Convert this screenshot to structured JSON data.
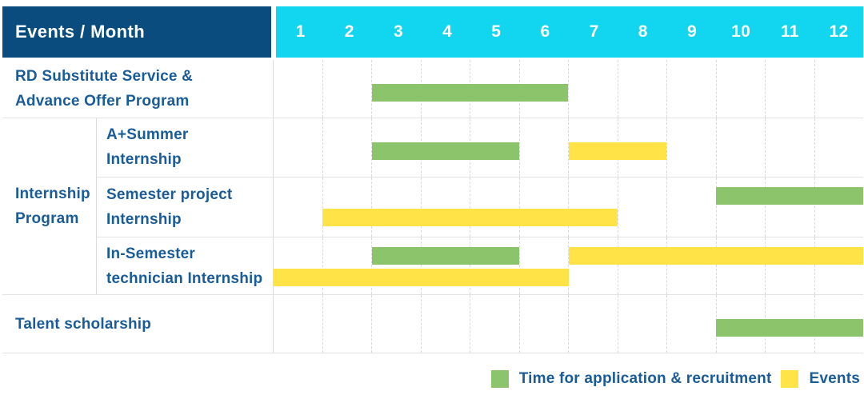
{
  "header": {
    "label": "Events / Month",
    "months": [
      "1",
      "2",
      "3",
      "4",
      "5",
      "6",
      "7",
      "8",
      "9",
      "10",
      "11",
      "12"
    ]
  },
  "colors": {
    "header_bg": "#0b4c7e",
    "month_header_bg": "#12d5ef",
    "header_text": "#ffffff",
    "label_text": "#1a5c99",
    "application": "#8bc46b",
    "event": "#ffe347"
  },
  "rows": [
    {
      "kind": "simple",
      "label_lines": [
        "RD Substitute Service &",
        "Advance Offer Program"
      ],
      "bars": [
        {
          "type": "application",
          "start": 3,
          "end": 6,
          "slot": "single"
        }
      ]
    },
    {
      "kind": "group",
      "label_lines": [
        "Internship",
        "Program"
      ],
      "subrows": [
        {
          "label_lines": [
            "A+Summer",
            "Internship"
          ],
          "bars": [
            {
              "type": "application",
              "start": 3,
              "end": 5,
              "slot": "single"
            },
            {
              "type": "event",
              "start": 7,
              "end": 8,
              "slot": "single"
            }
          ]
        },
        {
          "label_lines": [
            "Semester project",
            "Internship"
          ],
          "bars": [
            {
              "type": "application",
              "start": 10,
              "end": 12,
              "slot": "upper"
            },
            {
              "type": "event",
              "start": 2,
              "end": 7,
              "slot": "lower"
            }
          ]
        },
        {
          "label_lines": [
            "In-Semester",
            "technician Internship"
          ],
          "bars": [
            {
              "type": "application",
              "start": 3,
              "end": 5,
              "slot": "upper"
            },
            {
              "type": "event",
              "start": 7,
              "end": 12,
              "slot": "upper"
            },
            {
              "type": "event",
              "start": 1,
              "end": 6,
              "slot": "lower"
            }
          ]
        }
      ]
    },
    {
      "kind": "simple",
      "label_lines": [
        "Talent scholarship"
      ],
      "bars": [
        {
          "type": "application",
          "start": 10,
          "end": 12,
          "slot": "single"
        }
      ]
    }
  ],
  "legend": [
    {
      "type": "application",
      "label": "Time for application & recruitment"
    },
    {
      "type": "event",
      "label": "Events"
    }
  ],
  "chart_data": {
    "type": "table",
    "title": "Events / Month",
    "x_axis": {
      "unit": "month",
      "ticks": [
        1,
        2,
        3,
        4,
        5,
        6,
        7,
        8,
        9,
        10,
        11,
        12
      ]
    },
    "series": [
      {
        "name": "RD Substitute Service & Advance Offer Program",
        "group": null,
        "application_recruitment_months": [
          [
            3,
            6
          ]
        ],
        "event_months": []
      },
      {
        "name": "A+Summer Internship",
        "group": "Internship Program",
        "application_recruitment_months": [
          [
            3,
            5
          ]
        ],
        "event_months": [
          [
            7,
            8
          ]
        ]
      },
      {
        "name": "Semester project Internship",
        "group": "Internship Program",
        "application_recruitment_months": [
          [
            10,
            12
          ]
        ],
        "event_months": [
          [
            2,
            7
          ]
        ]
      },
      {
        "name": "In-Semester technician Internship",
        "group": "Internship Program",
        "application_recruitment_months": [
          [
            3,
            5
          ]
        ],
        "event_months": [
          [
            1,
            6
          ],
          [
            7,
            12
          ]
        ]
      },
      {
        "name": "Talent scholarship",
        "group": null,
        "application_recruitment_months": [
          [
            10,
            12
          ]
        ],
        "event_months": []
      }
    ],
    "legend": [
      {
        "label": "Time for application & recruitment",
        "color": "#8bc46b"
      },
      {
        "label": "Events",
        "color": "#ffe347"
      }
    ],
    "legend_position": "bottom-right",
    "grid": true
  }
}
